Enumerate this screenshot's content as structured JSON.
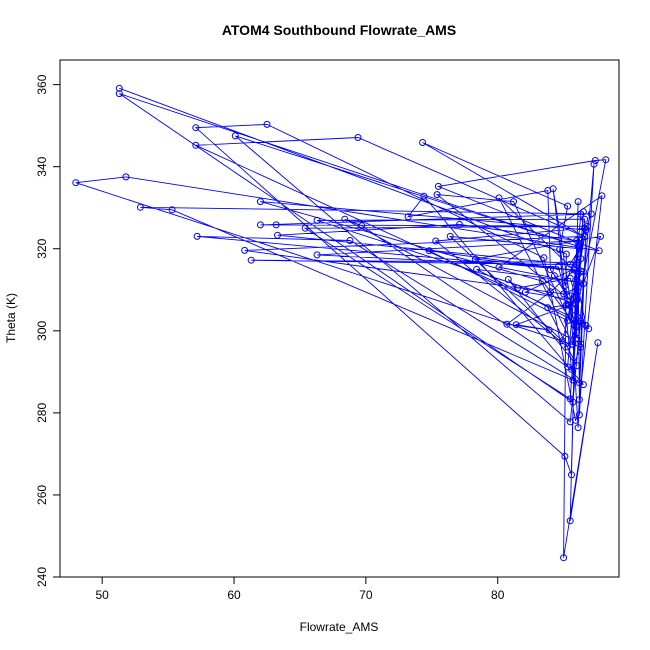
{
  "chart_data": {
    "type": "line",
    "title": "ATOM4 Southbound Flowrate_AMS",
    "xlabel": "Flowrate_AMS",
    "ylabel": "Theta (K)",
    "xlim": [
      46.8,
      89.2
    ],
    "ylim": [
      240.0,
      366.0
    ],
    "xticks": [
      50,
      60,
      70,
      80
    ],
    "yticks": [
      240,
      260,
      280,
      300,
      320,
      340,
      360
    ],
    "grid": false,
    "legend": "none",
    "marker": "open-circle",
    "color": "#0000ff",
    "series": [
      {
        "values": [
          [
            51.3,
            359.1
          ],
          [
            85.2,
            318.7
          ],
          [
            85.0,
            244.7
          ],
          [
            87.6,
            297.1
          ],
          [
            85.5,
            253.7
          ],
          [
            86.1,
            331.5
          ],
          [
            85.6,
            264.9
          ],
          [
            85.1,
            269.4
          ],
          [
            57.1,
            349.5
          ],
          [
            62.5,
            350.3
          ],
          [
            83.5,
            317.8
          ],
          [
            85.9,
            278.2
          ],
          [
            86.2,
            279.5
          ],
          [
            87.3,
            340.6
          ],
          [
            85.7,
            282.6
          ],
          [
            51.3,
            357.8
          ],
          [
            86.1,
            320.6
          ],
          [
            60.1,
            347.5
          ],
          [
            85.5,
            277.8
          ],
          [
            86.3,
            302.4
          ],
          [
            57.1,
            345.2
          ],
          [
            69.4,
            347.1
          ],
          [
            86.6,
            322.9
          ],
          [
            74.3,
            345.9
          ],
          [
            85.3,
            330.4
          ],
          [
            84.7,
            319.8
          ],
          [
            85.6,
            290.6
          ],
          [
            86.3,
            296.0
          ],
          [
            48.0,
            336.1
          ],
          [
            51.8,
            337.5
          ],
          [
            87.7,
            319.5
          ],
          [
            75.5,
            335.2
          ],
          [
            87.4,
            341.5
          ],
          [
            88.2,
            341.7
          ],
          [
            85.8,
            301.5
          ],
          [
            84.2,
            334.6
          ],
          [
            85.1,
            311.0
          ],
          [
            87.1,
            328.5
          ],
          [
            52.9,
            330.1
          ],
          [
            55.3,
            329.5
          ],
          [
            86.5,
            286.9
          ],
          [
            74.4,
            332.8
          ],
          [
            73.2,
            327.8
          ],
          [
            83.8,
            334.2
          ],
          [
            84.0,
            314.9
          ],
          [
            85.5,
            308.5
          ],
          [
            86.1,
            276.4
          ],
          [
            86.7,
            324.6
          ],
          [
            62.0,
            331.5
          ],
          [
            83.4,
            312.1
          ],
          [
            86.0,
            301.0
          ],
          [
            86.1,
            313.8
          ],
          [
            80.1,
            332.4
          ],
          [
            85.7,
            296.7
          ],
          [
            86.6,
            327.2
          ],
          [
            66.3,
            326.9
          ],
          [
            85.8,
            306.7
          ],
          [
            75.4,
            333.2
          ],
          [
            81.2,
            331.5
          ],
          [
            86.3,
            296.8
          ],
          [
            68.4,
            327.2
          ],
          [
            69.7,
            325.6
          ],
          [
            85.3,
            291.2
          ],
          [
            86.3,
            328.4
          ],
          [
            62.0,
            325.8
          ],
          [
            63.2,
            325.8
          ],
          [
            86.8,
            325.5
          ],
          [
            65.4,
            325.0
          ],
          [
            85.5,
            283.4
          ],
          [
            86.5,
            329.0
          ],
          [
            85.7,
            288.0
          ],
          [
            86.0,
            322.0
          ],
          [
            77.1,
            325.9
          ],
          [
            63.3,
            323.3
          ],
          [
            85.5,
            316.2
          ],
          [
            86.2,
            320.0
          ],
          [
            76.4,
            323.0
          ],
          [
            84.9,
            297.6
          ],
          [
            86.3,
            314.6
          ],
          [
            57.2,
            323.0
          ],
          [
            68.8,
            322.0
          ],
          [
            86.2,
            287.3
          ],
          [
            86.5,
            314.4
          ],
          [
            74.8,
            319.5
          ],
          [
            85.3,
            302.5
          ],
          [
            86.2,
            320.4
          ],
          [
            86.6,
            325.0
          ],
          [
            75.3,
            321.9
          ],
          [
            85.3,
            296.1
          ],
          [
            86.0,
            301.4
          ],
          [
            86.3,
            317.6
          ],
          [
            86.6,
            323.0
          ],
          [
            60.8,
            319.6
          ],
          [
            85.0,
            309.0
          ],
          [
            86.1,
            310.6
          ],
          [
            86.3,
            322.0
          ],
          [
            66.3,
            318.5
          ],
          [
            84.6,
            315.6
          ],
          [
            86.0,
            298.2
          ],
          [
            86.0,
            316.1
          ],
          [
            61.3,
            317.2
          ],
          [
            86.1,
            316.7
          ],
          [
            86.2,
            283.2
          ],
          [
            87.9,
            332.9
          ],
          [
            80.1,
            315.5
          ],
          [
            86.5,
            311.5
          ],
          [
            87.8,
            323.0
          ],
          [
            78.3,
            317.5
          ],
          [
            85.8,
            314.8
          ],
          [
            84.0,
            309.5
          ],
          [
            80.7,
            301.6
          ],
          [
            83.9,
            300.2
          ],
          [
            81.4,
            301.5
          ],
          [
            85.4,
            306.2
          ],
          [
            86.1,
            311.9
          ],
          [
            78.4,
            315.0
          ],
          [
            86.9,
            300.5
          ],
          [
            85.2,
            306.3
          ],
          [
            83.8,
            305.6
          ],
          [
            86.0,
            291.5
          ],
          [
            80.8,
            312.5
          ],
          [
            81.5,
            310.4
          ],
          [
            85.5,
            312.8
          ],
          [
            86.0,
            307.4
          ],
          [
            82.1,
            309.4
          ],
          [
            85.8,
            315.1
          ],
          [
            86.7,
            301.3
          ],
          [
            84.3,
            313.4
          ]
        ]
      }
    ]
  }
}
